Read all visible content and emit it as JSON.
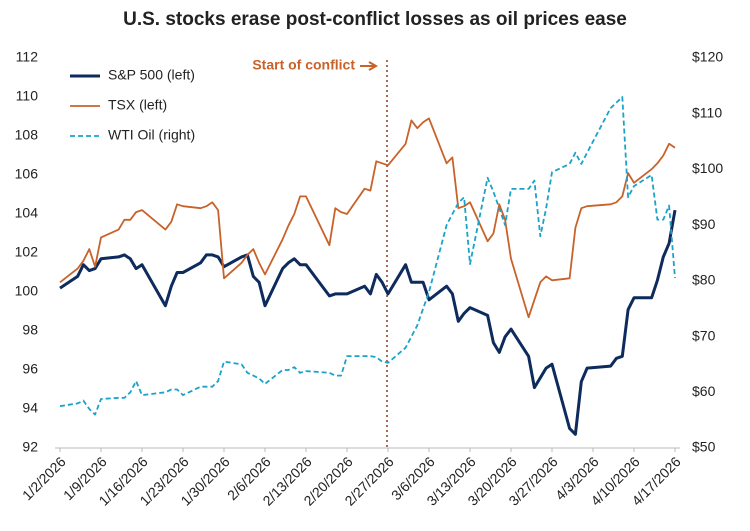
{
  "chart_data": {
    "type": "line",
    "title": "U.S. stocks erase post-conflict losses as oil prices ease",
    "annotation": "Start of conflict",
    "x": [
      "1/2/2026",
      "1/5/2026",
      "1/6/2026",
      "1/7/2026",
      "1/8/2026",
      "1/9/2026",
      "1/12/2026",
      "1/13/2026",
      "1/14/2026",
      "1/15/2026",
      "1/16/2026",
      "1/20/2026",
      "1/21/2026",
      "1/22/2026",
      "1/23/2026",
      "1/26/2026",
      "1/27/2026",
      "1/28/2026",
      "1/29/2026",
      "1/30/2026",
      "2/2/2026",
      "2/3/2026",
      "2/4/2026",
      "2/5/2026",
      "2/6/2026",
      "2/9/2026",
      "2/10/2026",
      "2/11/2026",
      "2/12/2026",
      "2/13/2026",
      "2/17/2026",
      "2/18/2026",
      "2/19/2026",
      "2/20/2026",
      "2/23/2026",
      "2/24/2026",
      "2/25/2026",
      "2/26/2026",
      "2/27/2026",
      "3/2/2026",
      "3/3/2026",
      "3/4/2026",
      "3/5/2026",
      "3/6/2026",
      "3/9/2026",
      "3/10/2026",
      "3/11/2026",
      "3/12/2026",
      "3/13/2026",
      "3/16/2026",
      "3/17/2026",
      "3/18/2026",
      "3/19/2026",
      "3/20/2026",
      "3/23/2026",
      "3/24/2026",
      "3/25/2026",
      "3/26/2026",
      "3/27/2026",
      "3/30/2026",
      "3/31/2026",
      "4/1/2026",
      "4/2/2026",
      "4/6/2026",
      "4/7/2026",
      "4/8/2026",
      "4/9/2026",
      "4/10/2026",
      "4/13/2026",
      "4/14/2026",
      "4/15/2026",
      "4/16/2026",
      "4/17/2026"
    ],
    "series": [
      {
        "name": "S&P 500 (left)",
        "color": "#0d2b5c",
        "width": 3,
        "dash": "",
        "values": [
          100.2,
          100.8,
          101.4,
          101.1,
          101.2,
          101.7,
          101.8,
          101.9,
          101.7,
          101.2,
          101.4,
          99.3,
          100.3,
          101.0,
          101.0,
          101.5,
          101.9,
          101.9,
          101.8,
          101.3,
          101.8,
          101.9,
          100.8,
          100.5,
          99.3,
          101.2,
          101.5,
          101.7,
          101.4,
          101.4,
          99.8,
          99.9,
          99.9,
          99.9,
          100.3,
          99.9,
          100.9,
          100.5,
          99.9,
          101.4,
          100.5,
          100.5,
          100.5,
          99.6,
          100.3,
          99.9,
          98.5,
          98.9,
          99.2,
          98.8,
          97.4,
          96.9,
          97.7,
          98.1,
          96.7,
          95.1,
          95.6,
          96.1,
          96.3,
          93.0,
          92.7,
          95.4,
          96.1,
          96.2,
          96.6,
          96.7,
          99.1,
          99.7,
          99.7,
          100.6,
          101.8,
          102.5,
          104.2
        ]
      },
      {
        "name": "TSX (left)",
        "color": "#c8622a",
        "width": 1.8,
        "dash": "",
        "values": [
          100.5,
          101.2,
          101.6,
          102.2,
          101.3,
          102.8,
          103.2,
          103.7,
          103.7,
          104.1,
          104.2,
          103.2,
          103.6,
          104.5,
          104.4,
          104.3,
          104.4,
          104.6,
          104.2,
          100.7,
          101.5,
          101.9,
          102.2,
          101.5,
          100.9,
          102.7,
          103.4,
          104.0,
          104.9,
          104.9,
          102.4,
          104.3,
          104.1,
          104.0,
          105.3,
          105.2,
          106.7,
          106.6,
          106.5,
          107.6,
          108.8,
          108.4,
          108.7,
          108.9,
          106.6,
          106.9,
          104.3,
          104.4,
          104.6,
          102.6,
          103.0,
          104.5,
          103.7,
          101.7,
          98.7,
          99.6,
          100.5,
          100.8,
          100.6,
          100.7,
          103.3,
          104.3,
          104.4,
          104.5,
          104.6,
          104.9,
          106.1,
          105.6,
          106.3,
          106.6,
          107.0,
          107.6,
          107.4
        ]
      },
      {
        "name": "WTI Oil (right)",
        "color": "#1aa3c9",
        "width": 1.8,
        "dash": "5 3",
        "axis": "y2",
        "values": [
          57.5,
          58,
          58.5,
          57,
          56,
          58.8,
          59,
          59,
          60,
          62,
          59.5,
          60,
          60.5,
          60.5,
          59.5,
          61,
          61,
          61,
          62,
          65.5,
          65,
          63.5,
          63,
          62.5,
          61.5,
          64,
          64,
          64.5,
          63.5,
          63.8,
          63.5,
          63,
          63,
          66.5,
          66.5,
          66.5,
          66.3,
          65.5,
          65.3,
          68,
          70,
          72,
          75,
          78,
          90,
          92,
          94,
          95,
          83,
          98.5,
          96,
          93,
          90,
          96.5,
          96.5,
          98,
          88,
          93,
          99.5,
          101,
          103,
          101,
          103,
          111,
          112,
          113,
          95,
          97,
          99,
          91,
          91,
          93.5,
          80.5
        ]
      }
    ],
    "xlim": [
      "1/2/2026",
      "4/17/2026"
    ],
    "xticks": [
      "1/2/2026",
      "1/9/2026",
      "1/16/2026",
      "1/23/2026",
      "1/30/2026",
      "2/6/2026",
      "2/13/2026",
      "2/20/2026",
      "2/27/2026",
      "3/6/2026",
      "3/13/2026",
      "3/20/2026",
      "3/27/2026",
      "4/3/2026",
      "4/10/2026",
      "4/17/2026"
    ],
    "ylim": [
      92,
      112
    ],
    "yticks": [
      92,
      94,
      96,
      98,
      100,
      102,
      104,
      106,
      108,
      110,
      112
    ],
    "y2lim": [
      50,
      120
    ],
    "y2ticks": [
      {
        "value": 50,
        "label": "$50"
      },
      {
        "value": 60,
        "label": "$60"
      },
      {
        "value": 70,
        "label": "$70"
      },
      {
        "value": 80,
        "label": "$80"
      },
      {
        "value": 90,
        "label": "$90"
      },
      {
        "value": 100,
        "label": "$100"
      },
      {
        "value": 110,
        "label": "$110"
      },
      {
        "value": 120,
        "label": "$120"
      }
    ],
    "legend": "upper left"
  }
}
